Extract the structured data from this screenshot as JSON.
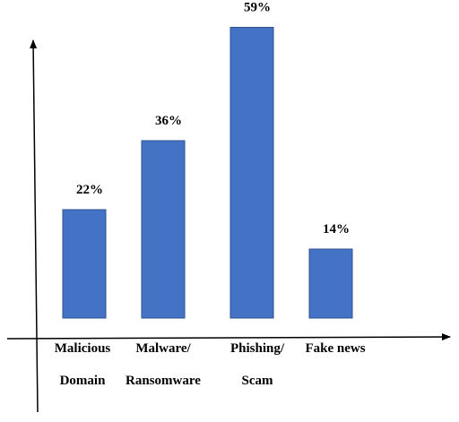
{
  "chart_data": {
    "type": "bar",
    "categories": [
      [
        "Malicious",
        "Domain"
      ],
      [
        "Malware/",
        "Ransomware"
      ],
      [
        "Phishing/",
        "Scam"
      ],
      [
        "Fake news"
      ]
    ],
    "values": [
      22,
      36,
      59,
      14
    ],
    "value_labels": [
      "22%",
      "36%",
      "59%",
      "14%"
    ],
    "color": "#4472c4"
  }
}
